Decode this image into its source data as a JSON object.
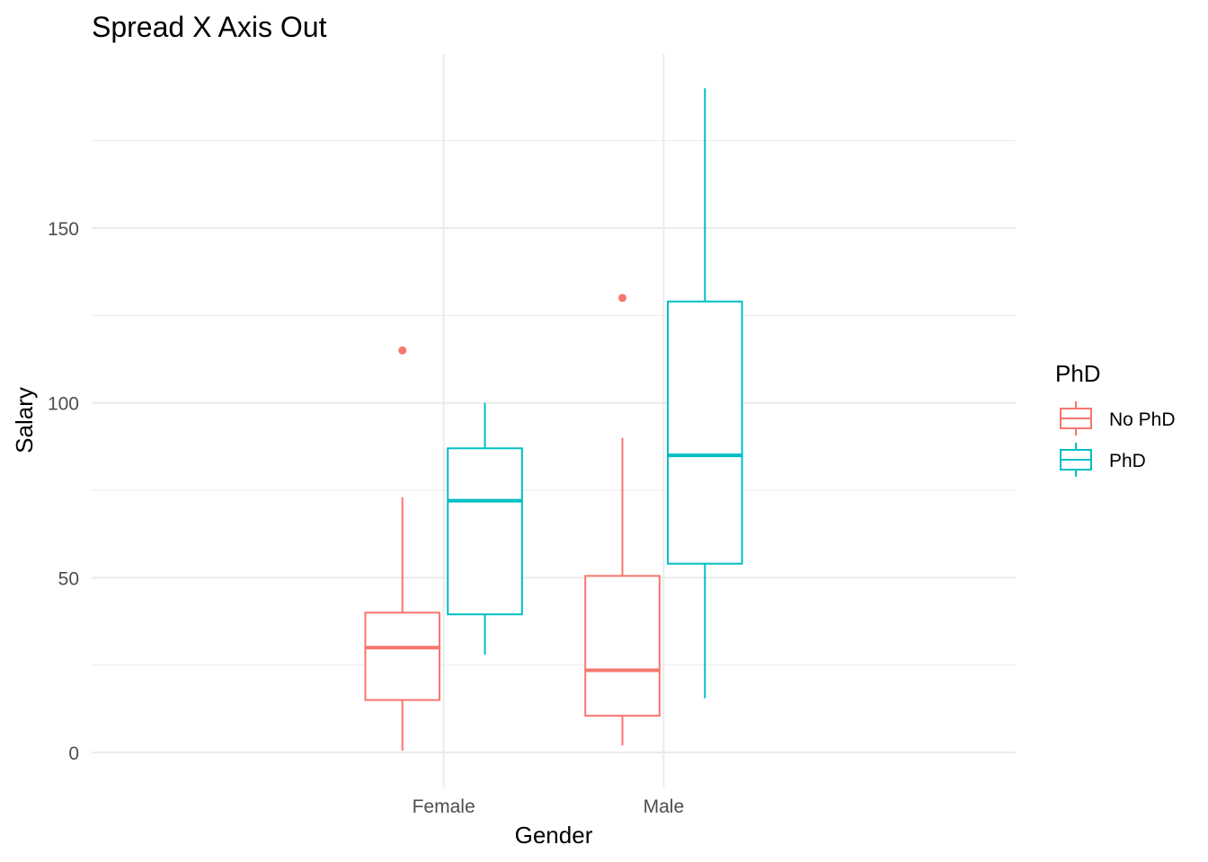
{
  "chart_data": {
    "type": "box",
    "title": "Spread X Axis Out",
    "xlabel": "Gender",
    "ylabel": "Salary",
    "categories": [
      "Female",
      "Male"
    ],
    "x_range": [
      -0.6,
      3.6
    ],
    "ylim": [
      -6,
      190
    ],
    "y_ticks": [
      0,
      50,
      100,
      150
    ],
    "y_minor_ticks": [
      25,
      75,
      125,
      175
    ],
    "grid": true,
    "legend": {
      "title": "PhD",
      "position": "right"
    },
    "series": [
      {
        "name": "No PhD",
        "color": "#F8766D",
        "boxes": [
          {
            "category": "Female",
            "min": 0.5,
            "q1": 15,
            "median": 30,
            "q3": 40,
            "max": 73,
            "outliers": [
              115
            ]
          },
          {
            "category": "Male",
            "min": 2,
            "q1": 10.5,
            "median": 23.5,
            "q3": 50.5,
            "max": 90,
            "outliers": [
              130
            ]
          }
        ]
      },
      {
        "name": "PhD",
        "color": "#00BFC4",
        "boxes": [
          {
            "category": "Female",
            "min": 28,
            "q1": 39.5,
            "median": 72,
            "q3": 87,
            "max": 100,
            "outliers": []
          },
          {
            "category": "Male",
            "min": 15.5,
            "q1": 54,
            "median": 85,
            "q3": 129,
            "max": 190,
            "outliers": []
          }
        ]
      }
    ]
  }
}
